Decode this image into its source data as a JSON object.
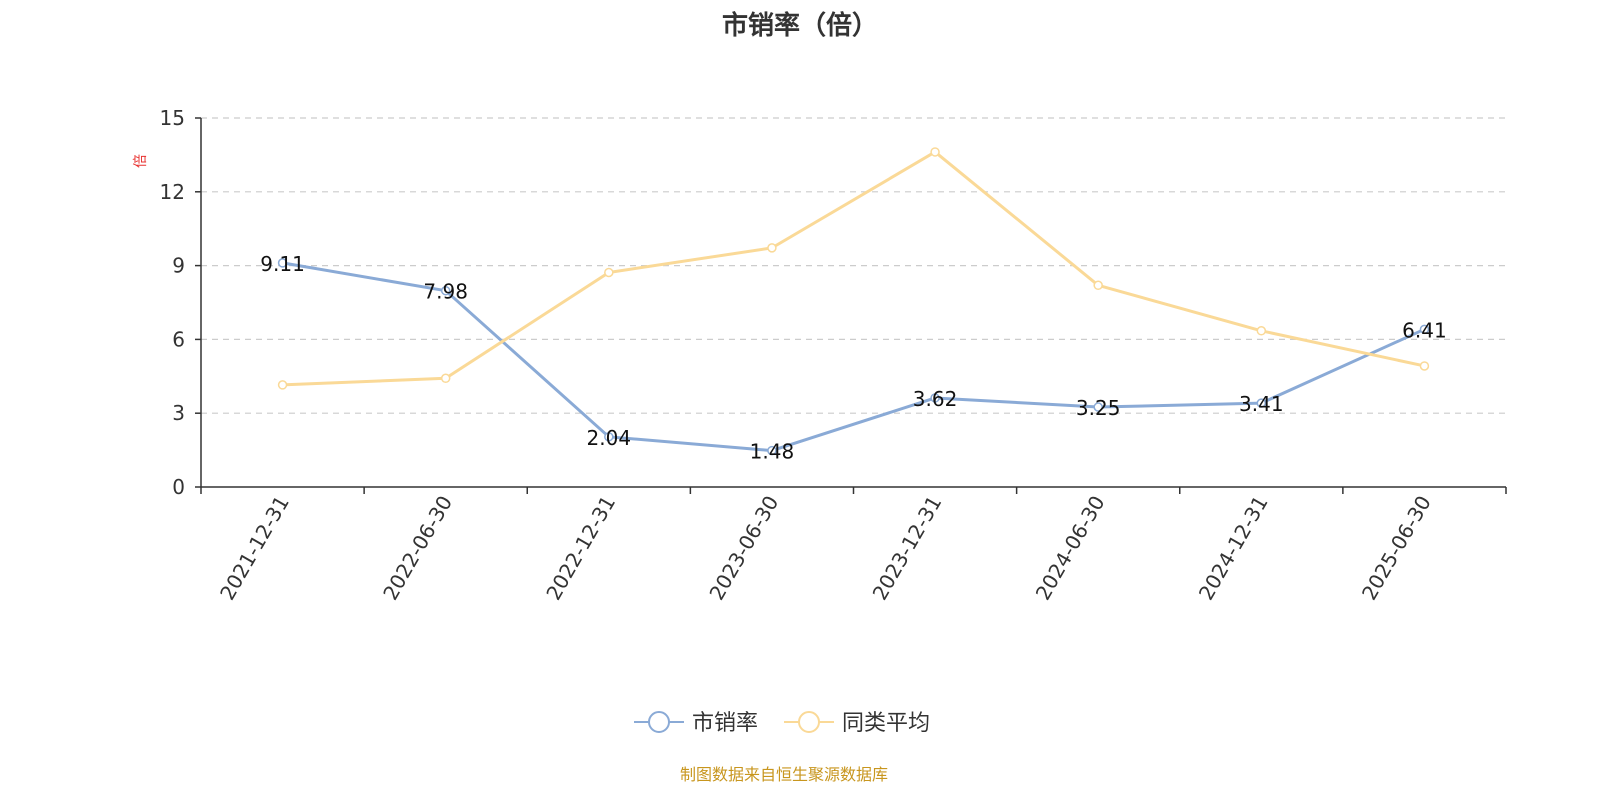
{
  "chart_data": {
    "type": "line",
    "title": "市销率（倍）",
    "ylabel": "倍",
    "xlabel": "",
    "categories": [
      "2021-12-31",
      "2022-06-30",
      "2022-12-31",
      "2023-06-30",
      "2023-12-31",
      "2024-06-30",
      "2024-12-31",
      "2025-06-30"
    ],
    "ylim": [
      0,
      15
    ],
    "yticks": [
      0,
      3,
      6,
      9,
      12,
      15
    ],
    "grid": true,
    "legend_position": "bottom-center",
    "series": [
      {
        "name": "市销率",
        "color": "#8aaad6",
        "values": [
          9.11,
          7.98,
          2.04,
          1.48,
          3.62,
          3.25,
          3.41,
          6.41
        ],
        "data_labels": [
          "9.11",
          "7.98",
          "2.04",
          "1.48",
          "3.62",
          "3.25",
          "3.41",
          "6.41"
        ]
      },
      {
        "name": "同类平均",
        "color": "#fad997",
        "values": [
          4.15,
          4.42,
          8.72,
          9.72,
          13.62,
          8.2,
          6.35,
          4.92
        ]
      }
    ]
  },
  "source_note": "制图数据来自恒生聚源数据库"
}
